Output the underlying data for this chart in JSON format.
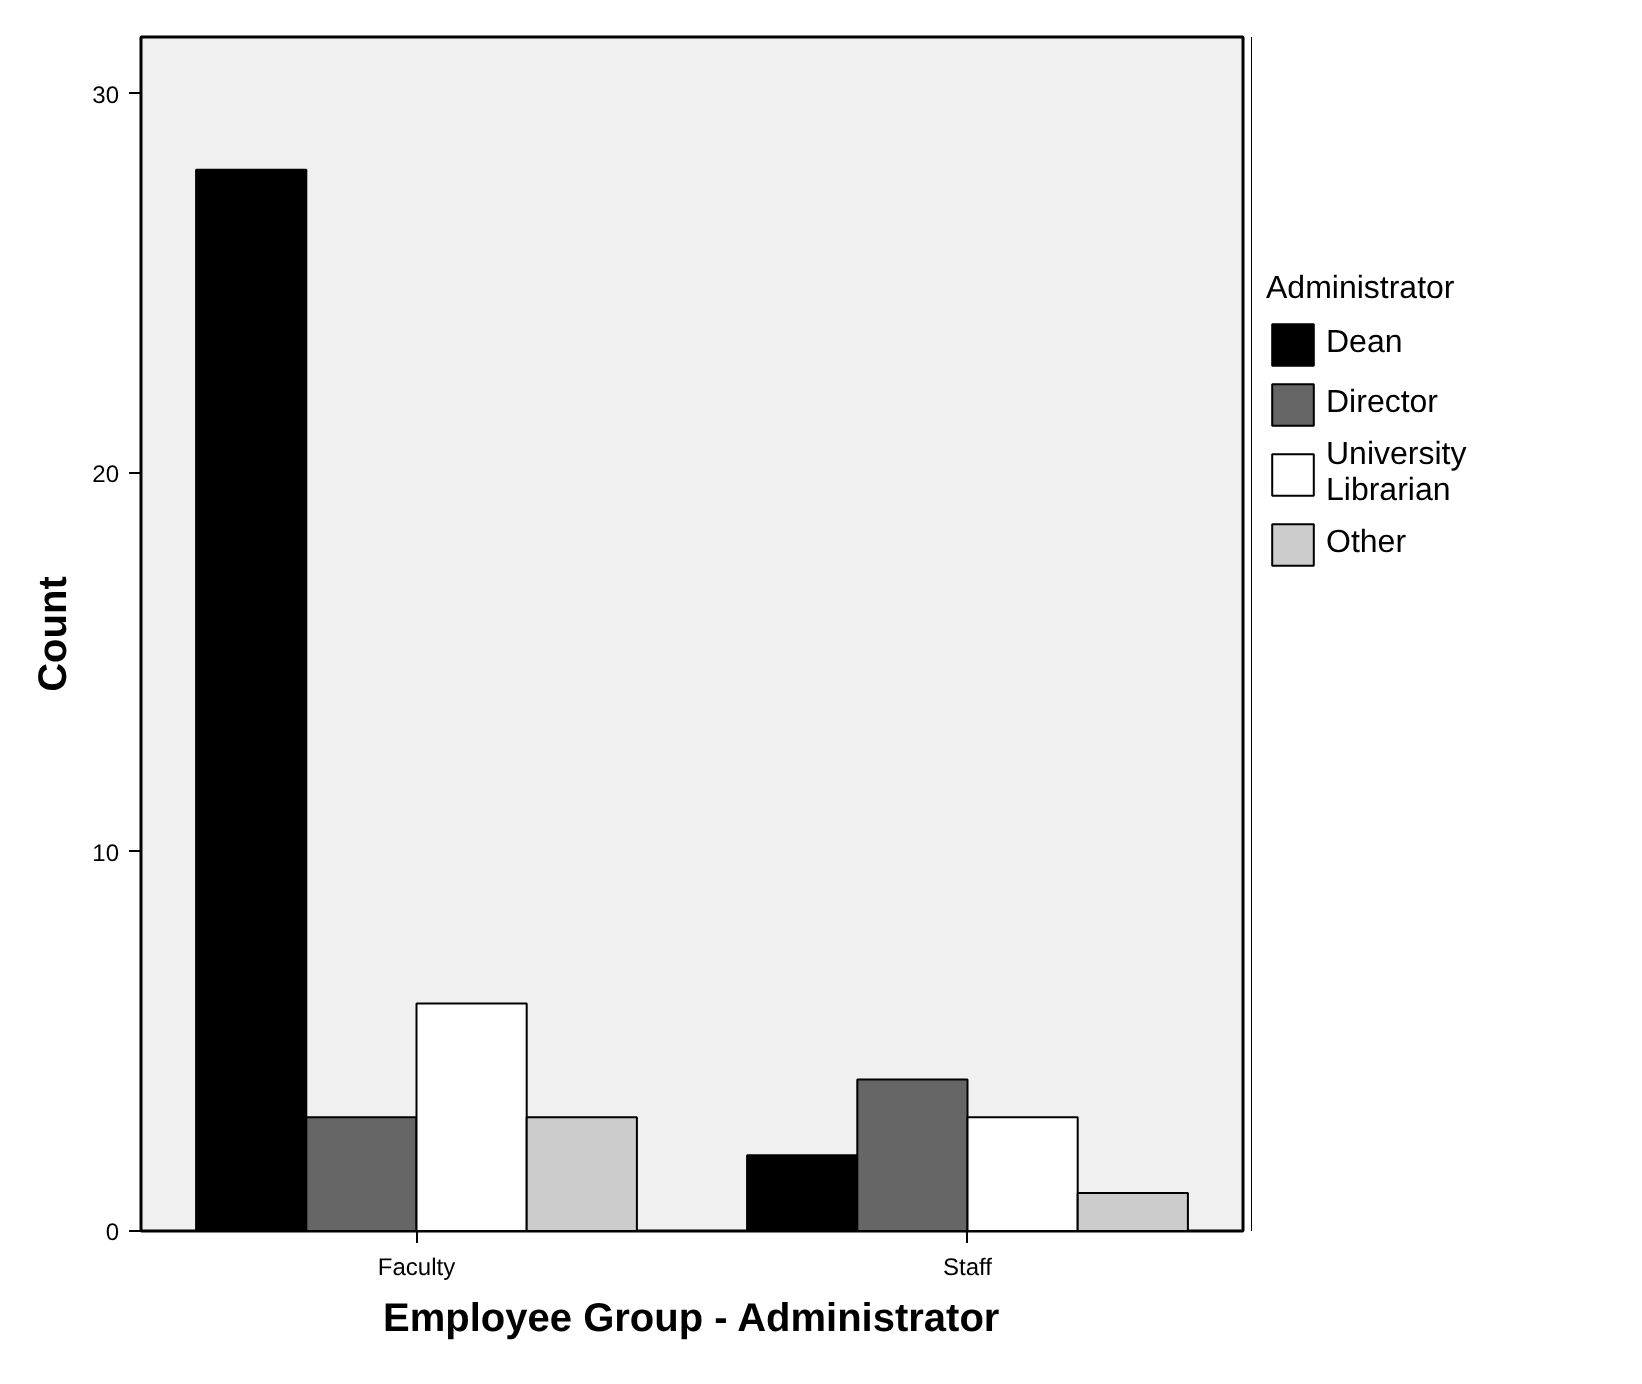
{
  "chart_data": {
    "type": "bar",
    "xlabel": "Employee Group - Administrator",
    "ylabel": "Count",
    "legend_title": "Administrator",
    "categories": [
      "Faculty",
      "Staff"
    ],
    "series": [
      {
        "name": "Dean",
        "color": "#000000",
        "values": [
          28,
          2
        ]
      },
      {
        "name": "Director",
        "color": "#666666",
        "values": [
          3,
          4
        ]
      },
      {
        "name": "University Librarian",
        "color": "#ffffff",
        "values": [
          6,
          3
        ]
      },
      {
        "name": "Other",
        "color": "#cccccc",
        "values": [
          3,
          1
        ]
      }
    ],
    "ylim": [
      0,
      31.5
    ],
    "yticks": [
      0,
      10,
      20,
      30
    ],
    "grid": false,
    "legend": "right"
  }
}
